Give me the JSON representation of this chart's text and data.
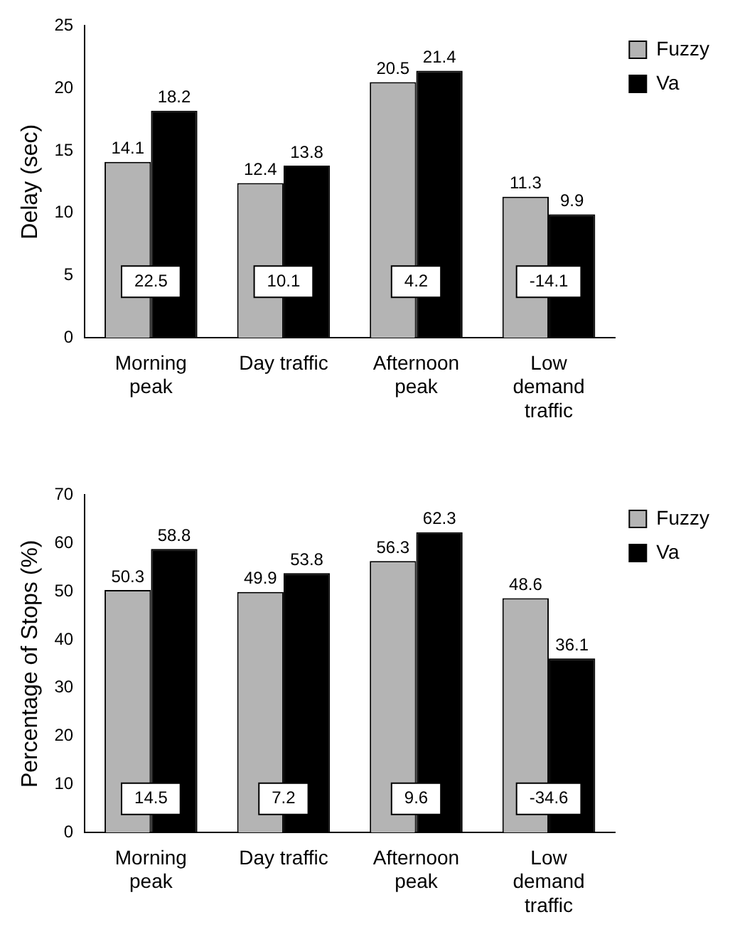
{
  "chart_data": [
    {
      "type": "bar",
      "ylabel": "Delay (sec)",
      "categories": [
        "Morning peak",
        "Day traffic",
        "Afternoon peak",
        "Low demand traffic"
      ],
      "series": [
        {
          "name": "Fuzzy",
          "color": "#b4b4b4",
          "values": [
            14.1,
            12.4,
            20.5,
            11.3
          ]
        },
        {
          "name": "Va",
          "color": "#000000",
          "values": [
            18.2,
            13.8,
            21.4,
            9.9
          ]
        }
      ],
      "ylim": [
        0,
        25
      ],
      "yticks": [
        0,
        5,
        10,
        15,
        20,
        25
      ],
      "grid": false,
      "legend": "top right",
      "data_labels": true,
      "annotations": [
        {
          "text": "22.5",
          "x": "Morning peak",
          "y": 4.5
        },
        {
          "text": "10.1",
          "x": "Day traffic",
          "y": 4.5
        },
        {
          "text": "4.2",
          "x": "Afternoon peak",
          "y": 4.5
        },
        {
          "text": "-14.1",
          "x": "Low demand traffic",
          "y": 4.5
        }
      ]
    },
    {
      "type": "bar",
      "ylabel": "Percentage of Stops (%)",
      "categories": [
        "Morning peak",
        "Day traffic",
        "Afternoon peak",
        "Low demand traffic"
      ],
      "series": [
        {
          "name": "Fuzzy",
          "color": "#b4b4b4",
          "values": [
            50.3,
            49.9,
            56.3,
            48.6
          ]
        },
        {
          "name": "Va",
          "color": "#000000",
          "values": [
            58.8,
            53.8,
            62.3,
            36.1
          ]
        }
      ],
      "ylim": [
        0,
        70
      ],
      "yticks": [
        0,
        10,
        20,
        30,
        40,
        50,
        60,
        70
      ],
      "grid": false,
      "legend": "top right",
      "data_labels": true,
      "annotations": [
        {
          "text": "14.5",
          "x": "Morning peak",
          "y": 7
        },
        {
          "text": "7.2",
          "x": "Day traffic",
          "y": 7
        },
        {
          "text": "9.6",
          "x": "Afternoon peak",
          "y": 7
        },
        {
          "text": "-34.6",
          "x": "Low demand traffic",
          "y": 7
        }
      ]
    }
  ]
}
